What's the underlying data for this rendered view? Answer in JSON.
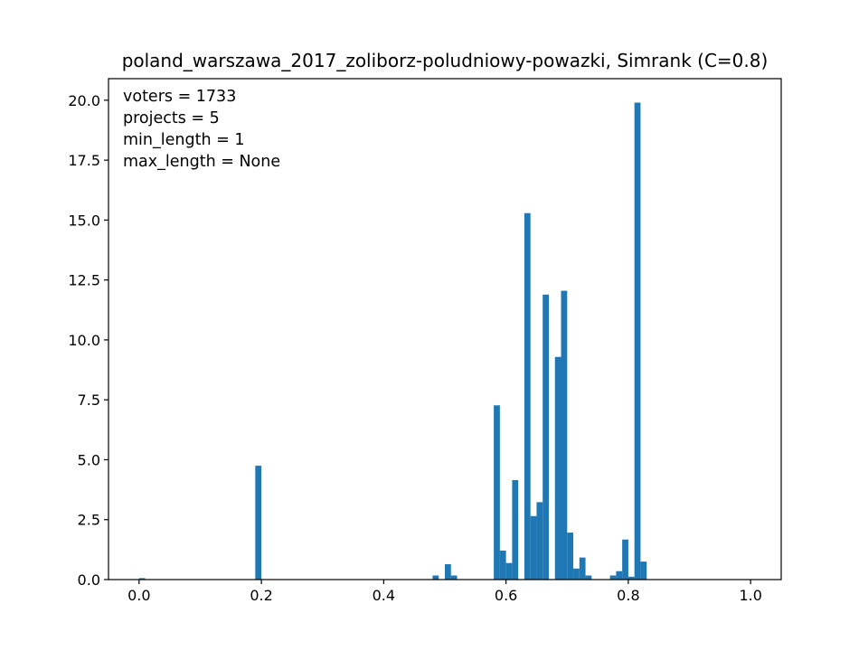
{
  "chart_data": {
    "type": "bar",
    "title": "poland_warszawa_2017_zoliborz-poludniowy-powazki, Simrank (C=0.8)",
    "xlabel": "",
    "ylabel": "",
    "xlim": [
      -0.05,
      1.05
    ],
    "ylim": [
      0,
      20.9
    ],
    "bin_width": 0.01,
    "xticks": [
      0.0,
      0.2,
      0.4,
      0.6,
      0.8,
      1.0
    ],
    "xtick_labels": [
      "0.0",
      "0.2",
      "0.4",
      "0.6",
      "0.8",
      "1.0"
    ],
    "yticks": [
      0.0,
      2.5,
      5.0,
      7.5,
      10.0,
      12.5,
      15.0,
      17.5,
      20.0
    ],
    "ytick_labels": [
      "0.0",
      "2.5",
      "5.0",
      "7.5",
      "10.0",
      "12.5",
      "15.0",
      "17.5",
      "20.0"
    ],
    "bar_color": "#1f77b4",
    "grid": false,
    "annotations": [
      "voters = 1733",
      "projects = 5",
      "min_length = 1",
      "max_length = None"
    ],
    "bins": [
      {
        "x": 0.0,
        "value": 0.06
      },
      {
        "x": 0.19,
        "value": 4.75
      },
      {
        "x": 0.48,
        "value": 0.17
      },
      {
        "x": 0.5,
        "value": 0.64
      },
      {
        "x": 0.51,
        "value": 0.17
      },
      {
        "x": 0.58,
        "value": 7.27
      },
      {
        "x": 0.59,
        "value": 1.21
      },
      {
        "x": 0.6,
        "value": 0.69
      },
      {
        "x": 0.61,
        "value": 4.15
      },
      {
        "x": 0.63,
        "value": 15.29
      },
      {
        "x": 0.64,
        "value": 2.65
      },
      {
        "x": 0.65,
        "value": 3.23
      },
      {
        "x": 0.66,
        "value": 11.89
      },
      {
        "x": 0.68,
        "value": 9.29
      },
      {
        "x": 0.69,
        "value": 12.05
      },
      {
        "x": 0.7,
        "value": 1.96
      },
      {
        "x": 0.71,
        "value": 0.46
      },
      {
        "x": 0.72,
        "value": 0.92
      },
      {
        "x": 0.73,
        "value": 0.17
      },
      {
        "x": 0.77,
        "value": 0.17
      },
      {
        "x": 0.78,
        "value": 0.35
      },
      {
        "x": 0.79,
        "value": 1.67
      },
      {
        "x": 0.8,
        "value": 0.12
      },
      {
        "x": 0.81,
        "value": 19.9
      },
      {
        "x": 0.82,
        "value": 0.75
      }
    ]
  }
}
